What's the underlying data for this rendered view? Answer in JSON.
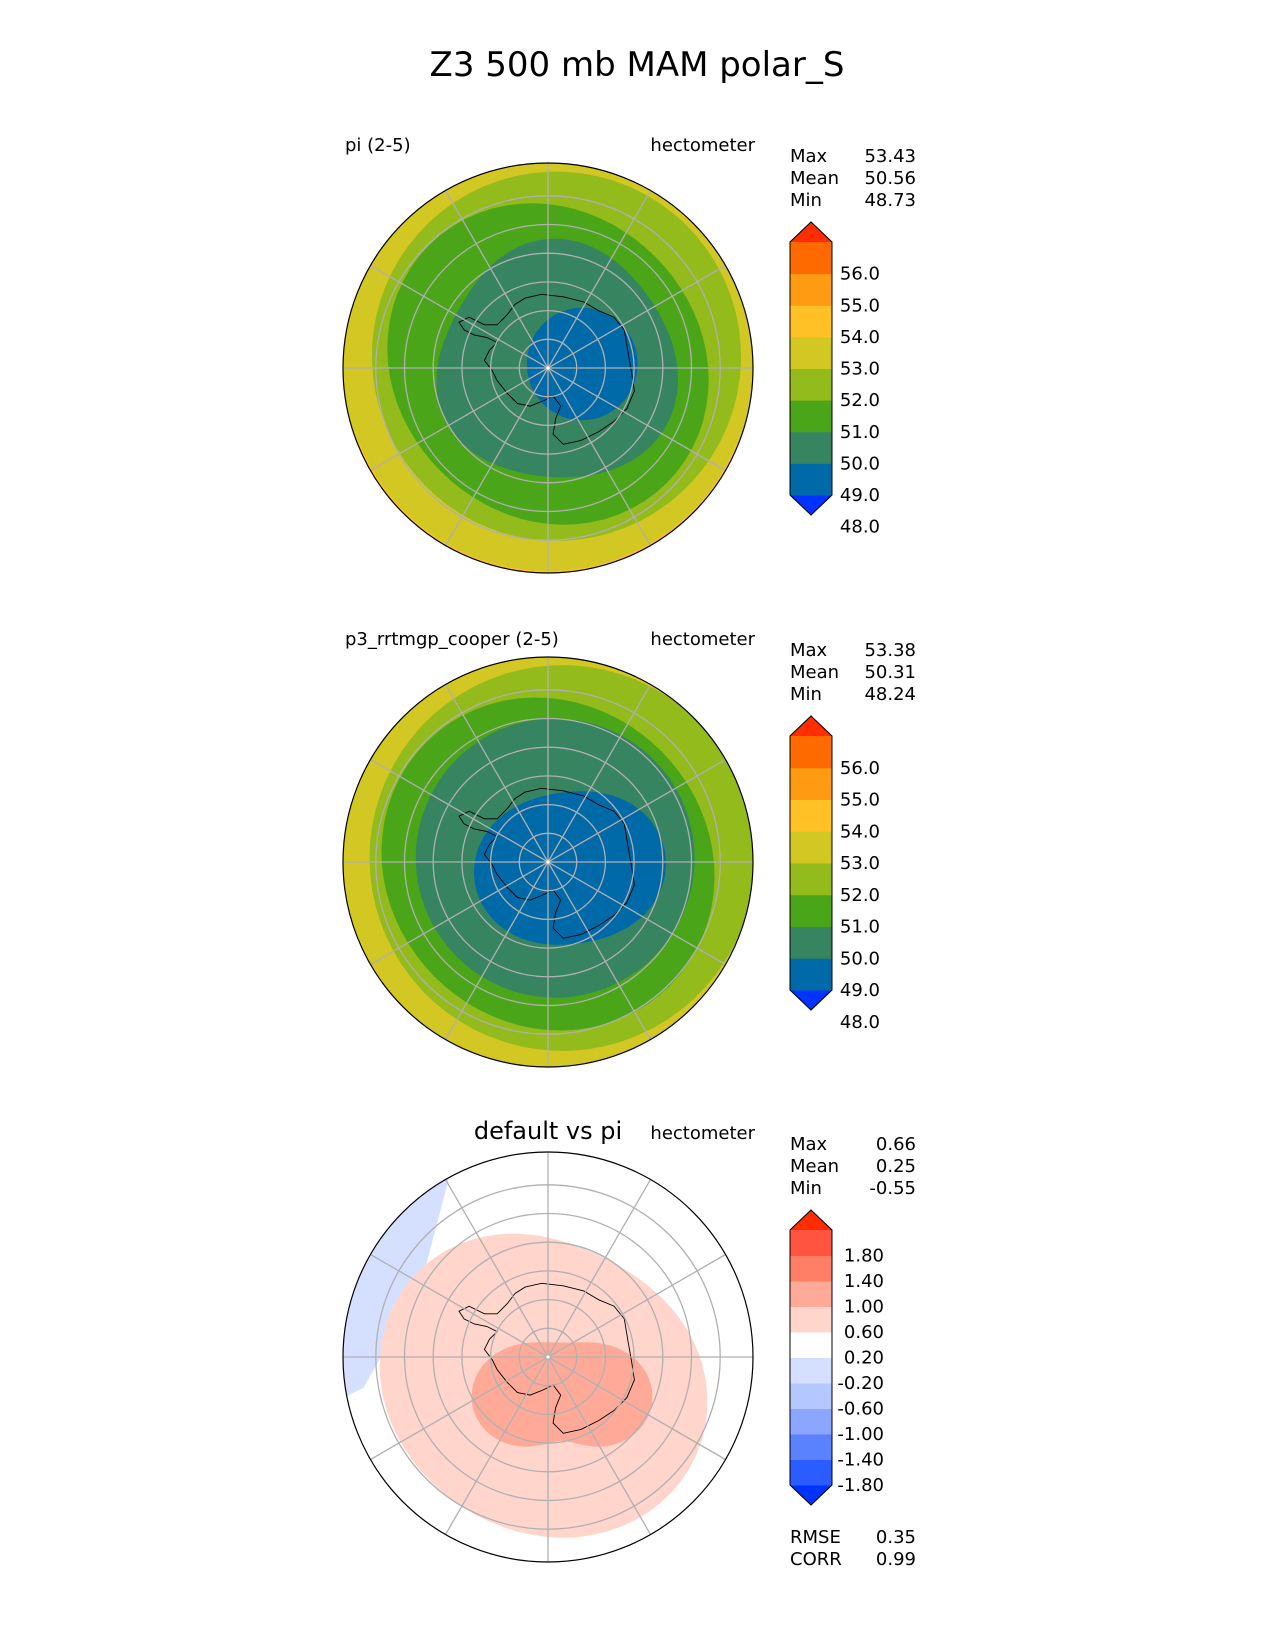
{
  "title": "Z3 500 mb MAM polar_S",
  "chart_data": [
    {
      "type": "heatmap",
      "projection": "south-polar-stereographic",
      "left_label": "pi (2-5)",
      "center_label": "",
      "units": "hectometer",
      "stats": [
        {
          "label": "Max",
          "value": "53.43"
        },
        {
          "label": "Mean",
          "value": "50.56"
        },
        {
          "label": "Min",
          "value": "48.73"
        }
      ],
      "colorbar": {
        "ticks": [
          "56.0",
          "55.0",
          "54.0",
          "53.0",
          "52.0",
          "51.0",
          "50.0",
          "49.0",
          "48.0"
        ],
        "colors": [
          "#0033ff",
          "#006aa8",
          "#368460",
          "#4ba519",
          "#93bb1c",
          "#d3c724",
          "#ffc125",
          "#ff9b12",
          "#ff6a00",
          "#ff2d00"
        ],
        "extend": "both"
      },
      "field": {
        "contours": [
          {
            "level": 51.0,
            "color": "#4ba519"
          },
          {
            "level": 50.0,
            "color": "#368460"
          },
          {
            "level": 49.0,
            "color": "#006aa8"
          }
        ],
        "background": "#93bb1c",
        "outer_bands": [
          {
            "level": 52.0,
            "color": "#d3c724"
          },
          {
            "level": 53.0,
            "color": "#ffc125"
          }
        ]
      },
      "footer_stats": []
    },
    {
      "type": "heatmap",
      "projection": "south-polar-stereographic",
      "left_label": "p3_rrtmgp_cooper (2-5)",
      "center_label": "",
      "units": "hectometer",
      "stats": [
        {
          "label": "Max",
          "value": "53.38"
        },
        {
          "label": "Mean",
          "value": "50.31"
        },
        {
          "label": "Min",
          "value": "48.24"
        }
      ],
      "colorbar": {
        "ticks": [
          "56.0",
          "55.0",
          "54.0",
          "53.0",
          "52.0",
          "51.0",
          "50.0",
          "49.0",
          "48.0"
        ],
        "colors": [
          "#0033ff",
          "#006aa8",
          "#368460",
          "#4ba519",
          "#93bb1c",
          "#d3c724",
          "#ffc125",
          "#ff9b12",
          "#ff6a00",
          "#ff2d00"
        ],
        "extend": "both"
      },
      "field": {
        "contours": [
          {
            "level": 51.0,
            "color": "#4ba519"
          },
          {
            "level": 50.0,
            "color": "#368460"
          },
          {
            "level": 49.0,
            "color": "#006aa8"
          }
        ],
        "background": "#93bb1c",
        "outer_bands": [
          {
            "level": 52.0,
            "color": "#d3c724"
          }
        ]
      },
      "footer_stats": []
    },
    {
      "type": "heatmap",
      "projection": "south-polar-stereographic",
      "left_label": "",
      "center_label": "default vs pi",
      "units": "hectometer",
      "stats": [
        {
          "label": "Max",
          "value": "0.66"
        },
        {
          "label": "Mean",
          "value": "0.25"
        },
        {
          "label": "Min",
          "value": "-0.55"
        }
      ],
      "colorbar": {
        "ticks": [
          "1.80",
          "1.40",
          "1.00",
          "0.60",
          "0.20",
          "-0.20",
          "-0.60",
          "-1.00",
          "-1.40",
          "-1.80"
        ],
        "colors": [
          "#0033ff",
          "#2a5cff",
          "#5a82ff",
          "#8aa6ff",
          "#b5c7ff",
          "#d5dfff",
          "#ffffff",
          "#ffd5cc",
          "#ffaa99",
          "#ff7f66",
          "#ff5540",
          "#ff2d00"
        ],
        "extend": "both"
      },
      "field": {
        "contours": [
          {
            "level": 0.2,
            "color": "#ffd5cc"
          },
          {
            "level": 0.6,
            "color": "#ffaa99"
          }
        ],
        "background": "#ffffff",
        "negative_color": "#d5dfff"
      },
      "footer_stats": [
        {
          "label": "RMSE",
          "value": "0.35"
        },
        {
          "label": "CORR",
          "value": "0.99"
        }
      ]
    }
  ]
}
